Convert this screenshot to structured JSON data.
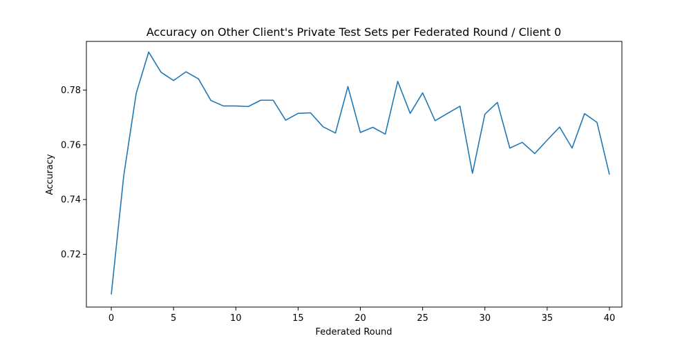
{
  "chart_data": {
    "type": "line",
    "title": "Accuracy on Other Client's Private Test Sets per Federated Round / Client 0",
    "xlabel": "Federated Round",
    "ylabel": "Accuracy",
    "xlim": [
      -2,
      41
    ],
    "ylim": [
      0.7007,
      0.7978
    ],
    "xticks": [
      0,
      5,
      10,
      15,
      20,
      25,
      30,
      35,
      40
    ],
    "yticks": [
      0.72,
      0.74,
      0.76,
      0.78
    ],
    "grid": false,
    "series": [
      {
        "color": "#1f77b4",
        "x": [
          0,
          1,
          2,
          3,
          4,
          5,
          6,
          7,
          8,
          9,
          10,
          11,
          12,
          13,
          14,
          15,
          16,
          17,
          18,
          19,
          20,
          21,
          22,
          23,
          24,
          25,
          26,
          27,
          28,
          29,
          30,
          31,
          32,
          33,
          34,
          35,
          36,
          37,
          38,
          39,
          40
        ],
        "y": [
          0.7053,
          0.7487,
          0.7788,
          0.7939,
          0.7865,
          0.7835,
          0.7867,
          0.7841,
          0.7762,
          0.7742,
          0.7742,
          0.774,
          0.7763,
          0.7763,
          0.769,
          0.7715,
          0.7717,
          0.7666,
          0.7643,
          0.7813,
          0.7645,
          0.7664,
          0.7639,
          0.7832,
          0.7715,
          0.779,
          0.7688,
          0.7715,
          0.7741,
          0.7496,
          0.7712,
          0.7755,
          0.7588,
          0.7609,
          0.7568,
          0.7617,
          0.7665,
          0.7588,
          0.7714,
          0.7682,
          0.7491
        ]
      }
    ]
  }
}
